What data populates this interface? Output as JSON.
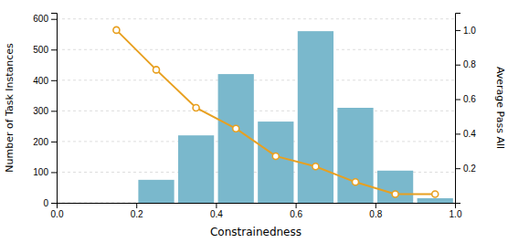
{
  "chart_data": {
    "type": "bar",
    "xlabel": "Constrainedness",
    "ylabel": "Number of Task Instances",
    "y2label": "Average Pass All",
    "xlim": [
      0.0,
      1.0
    ],
    "xticks": [
      {
        "value": 0.0,
        "label": "0.0"
      },
      0.2,
      0.4,
      0.6,
      0.8,
      {
        "value": 1.0,
        "label": "1.0"
      }
    ],
    "ylim": [
      0,
      620
    ],
    "yticks": [
      0,
      100,
      200,
      300,
      400,
      500,
      600
    ],
    "y2lim": [
      0.0,
      1.1
    ],
    "y2ticks": [
      0.2,
      0.4,
      0.6,
      0.8,
      {
        "value": 1.0,
        "label": "1.0"
      }
    ],
    "grid": true,
    "series": [
      {
        "type": "bar",
        "color": "#7ab8cc",
        "x": [
          0.25,
          0.35,
          0.45,
          0.55,
          0.65,
          0.75,
          0.85,
          0.95
        ],
        "values": [
          75,
          220,
          420,
          265,
          560,
          310,
          105,
          15
        ]
      },
      {
        "type": "line",
        "axis": "y2",
        "color": "#e8a020",
        "marker": "circle",
        "x": [
          0.15,
          0.25,
          0.35,
          0.45,
          0.55,
          0.65,
          0.75,
          0.85,
          0.95
        ],
        "values": [
          1.0,
          0.77,
          0.55,
          0.43,
          0.27,
          0.21,
          0.12,
          0.05,
          0.05
        ]
      }
    ]
  }
}
